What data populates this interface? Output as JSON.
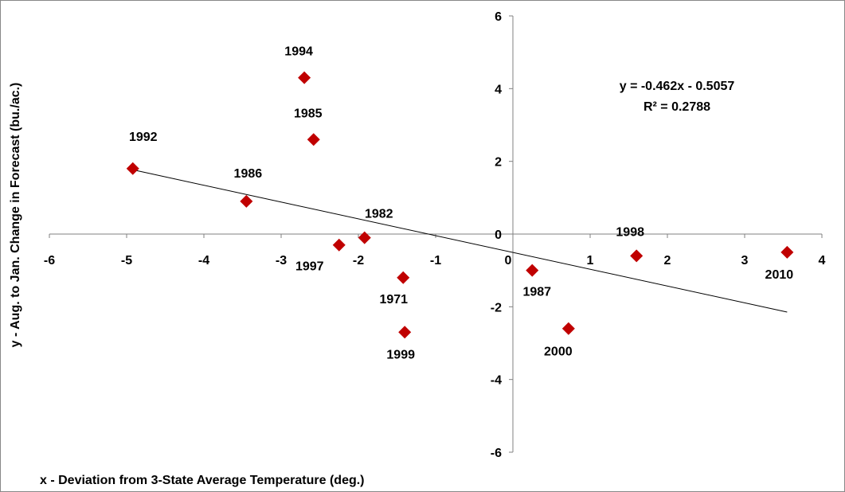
{
  "chart_data": {
    "type": "scatter",
    "title": "",
    "xlabel": "x - Deviation from 3-State Average Temperature (deg.)",
    "ylabel": "y - Aug. to Jan. Change in Forecast (bu./ac.)",
    "xlim": [
      -6,
      4
    ],
    "ylim": [
      -6,
      6
    ],
    "x_ticks": [
      "-6",
      "-5",
      "-4",
      "-3",
      "-2",
      "-1",
      "0",
      "1",
      "2",
      "3",
      "4"
    ],
    "y_ticks": [
      "6",
      "4",
      "2",
      "0",
      "-2",
      "-4",
      "-6"
    ],
    "marker_color": "#c00000",
    "grid": false,
    "points": [
      {
        "label": "1992",
        "x": -4.92,
        "y": 1.8
      },
      {
        "label": "1994",
        "x": -2.7,
        "y": 4.3
      },
      {
        "label": "1985",
        "x": -2.58,
        "y": 2.6
      },
      {
        "label": "1986",
        "x": -3.45,
        "y": 0.9
      },
      {
        "label": "1997",
        "x": -2.25,
        "y": -0.3
      },
      {
        "label": "1982",
        "x": -1.92,
        "y": -0.1
      },
      {
        "label": "1971",
        "x": -1.42,
        "y": -1.2
      },
      {
        "label": "1999",
        "x": -1.4,
        "y": -2.7
      },
      {
        "label": "1987",
        "x": 0.25,
        "y": -1.0
      },
      {
        "label": "2000",
        "x": 0.72,
        "y": -2.6
      },
      {
        "label": "1998",
        "x": 1.6,
        "y": -0.6
      },
      {
        "label": "2010",
        "x": 3.55,
        "y": -0.5
      }
    ],
    "trendline": {
      "slope": -0.462,
      "intercept": -0.5057,
      "x_range": [
        -4.92,
        3.55
      ],
      "equation": "y = -0.462x - 0.5057",
      "r_squared": "R² = 0.2788"
    }
  }
}
